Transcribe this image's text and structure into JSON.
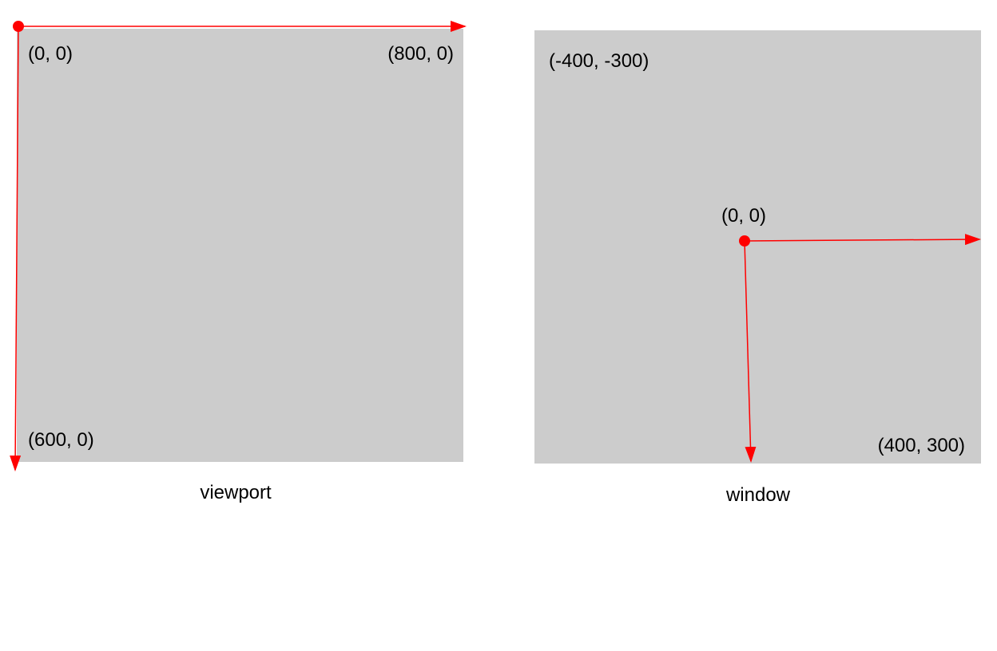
{
  "colors": {
    "panel": "#cccccc",
    "axis": "#ff0000",
    "text": "#000000"
  },
  "viewport": {
    "caption": "viewport",
    "labels": {
      "origin": "(0, 0)",
      "top_right": "(800, 0)",
      "bottom_left": "(600, 0)"
    }
  },
  "window": {
    "caption": "window",
    "labels": {
      "top_left": "(-400, -300)",
      "origin": "(0, 0)",
      "bottom_right": "(400, 300)"
    }
  }
}
